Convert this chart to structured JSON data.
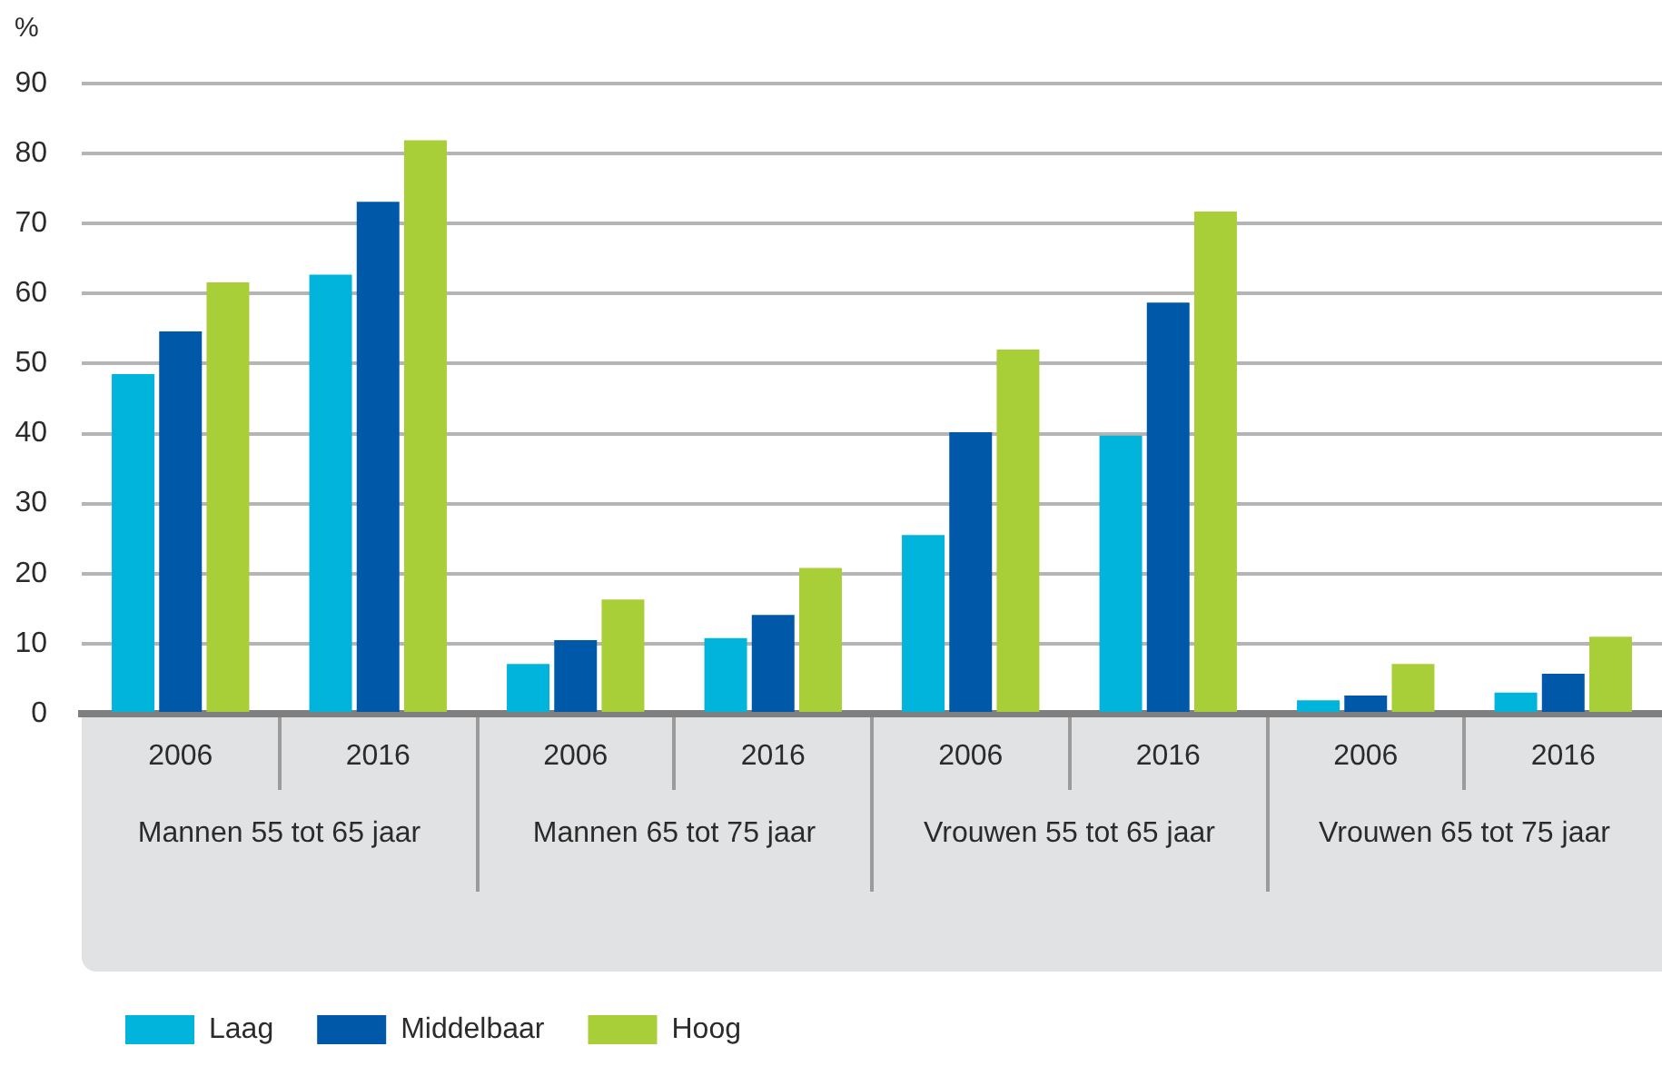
{
  "chart_data": {
    "type": "bar",
    "ylabel": "%",
    "categories": [
      "2006",
      "2016",
      "2006",
      "2016",
      "2006",
      "2016",
      "2006",
      "2016"
    ],
    "annotations": [
      "Mannen 55 tot 65 jaar",
      "Mannen 65 tot 75 jaar",
      "Vrouwen 55 tot 65 jaar",
      "Vrouwen 65 tot 75 jaar"
    ],
    "series": [
      {
        "name": "Laag",
        "color": "#00b4dc",
        "values": [
          48.5,
          62.7,
          7.1,
          10.8,
          25.5,
          39.7,
          1.9,
          3.0
        ]
      },
      {
        "name": "Middelbaar",
        "color": "#0058a8",
        "values": [
          54.6,
          73.1,
          10.5,
          14.1,
          40.2,
          58.7,
          2.6,
          5.7
        ]
      },
      {
        "name": "Hoog",
        "color": "#a8cf38",
        "values": [
          61.6,
          81.9,
          16.3,
          20.8,
          52.0,
          71.7,
          7.1,
          11.0
        ]
      }
    ],
    "ylim": [
      0,
      90
    ],
    "yticks": [
      0,
      10,
      20,
      30,
      40,
      50,
      60,
      70,
      80,
      90
    ],
    "grid": "y",
    "legend": "bottom left"
  }
}
